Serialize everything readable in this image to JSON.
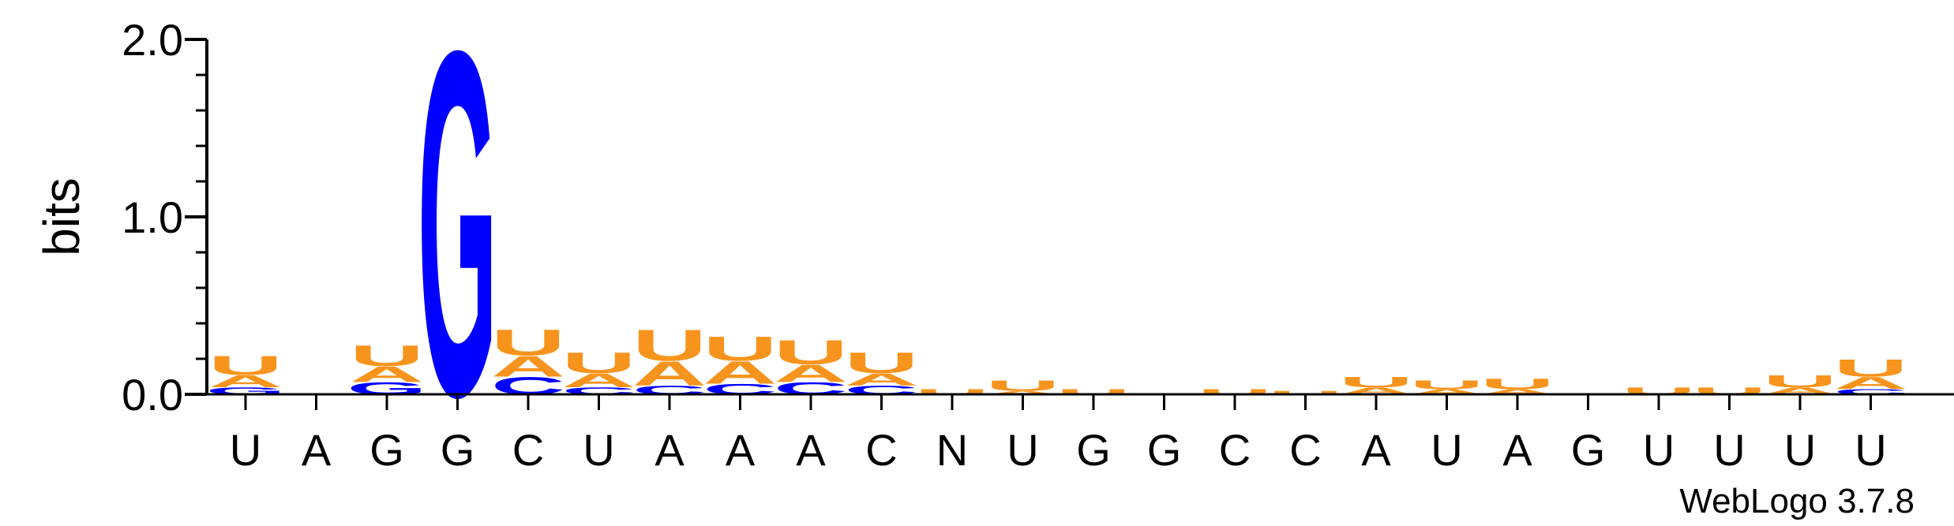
{
  "chart_data": {
    "type": "sequence-logo",
    "ylabel": "bits",
    "ylim": [
      0,
      2.0
    ],
    "yticks": [
      "0.0",
      "1.0",
      "2.0"
    ],
    "credit": "WebLogo 3.7.8",
    "colors": {
      "U": "#f7941d",
      "A": "#f7941d",
      "G": "#0000ff",
      "C": "#0000ff"
    },
    "positions": [
      {
        "label": "U",
        "stack": [
          [
            "G",
            0.04
          ],
          [
            "A",
            0.07
          ],
          [
            "U",
            0.11
          ]
        ]
      },
      {
        "label": "A",
        "stack": []
      },
      {
        "label": "G",
        "stack": [
          [
            "G",
            0.07
          ],
          [
            "A",
            0.09
          ],
          [
            "U",
            0.12
          ]
        ]
      },
      {
        "label": "G",
        "stack": [
          [
            "G",
            2.0
          ]
        ]
      },
      {
        "label": "C",
        "stack": [
          [
            "C",
            0.1
          ],
          [
            "A",
            0.12
          ],
          [
            "U",
            0.15
          ]
        ]
      },
      {
        "label": "U",
        "stack": [
          [
            "C",
            0.04
          ],
          [
            "A",
            0.08
          ],
          [
            "U",
            0.12
          ]
        ]
      },
      {
        "label": "A",
        "stack": [
          [
            "C",
            0.05
          ],
          [
            "A",
            0.14
          ],
          [
            "U",
            0.18
          ]
        ]
      },
      {
        "label": "A",
        "stack": [
          [
            "C",
            0.06
          ],
          [
            "A",
            0.13
          ],
          [
            "U",
            0.14
          ]
        ]
      },
      {
        "label": "A",
        "stack": [
          [
            "C",
            0.07
          ],
          [
            "A",
            0.1
          ],
          [
            "U",
            0.14
          ]
        ]
      },
      {
        "label": "C",
        "stack": [
          [
            "C",
            0.05
          ],
          [
            "A",
            0.07
          ],
          [
            "U",
            0.12
          ]
        ]
      },
      {
        "label": "N",
        "stack": [
          [
            "U",
            0.03
          ]
        ]
      },
      {
        "label": "U",
        "stack": [
          [
            "A",
            0.02
          ],
          [
            "U",
            0.06
          ]
        ]
      },
      {
        "label": "G",
        "stack": [
          [
            "U",
            0.03
          ]
        ]
      },
      {
        "label": "G",
        "stack": []
      },
      {
        "label": "C",
        "stack": [
          [
            "U",
            0.03
          ]
        ]
      },
      {
        "label": "C",
        "stack": [
          [
            "U",
            0.02
          ]
        ]
      },
      {
        "label": "A",
        "stack": [
          [
            "A",
            0.04
          ],
          [
            "U",
            0.06
          ]
        ]
      },
      {
        "label": "U",
        "stack": [
          [
            "A",
            0.03
          ],
          [
            "U",
            0.05
          ]
        ]
      },
      {
        "label": "A",
        "stack": [
          [
            "A",
            0.03
          ],
          [
            "U",
            0.06
          ]
        ]
      },
      {
        "label": "G",
        "stack": []
      },
      {
        "label": "U",
        "stack": [
          [
            "U",
            0.04
          ]
        ]
      },
      {
        "label": "U",
        "stack": [
          [
            "U",
            0.04
          ]
        ]
      },
      {
        "label": "U",
        "stack": [
          [
            "A",
            0.04
          ],
          [
            "U",
            0.07
          ]
        ]
      },
      {
        "label": "U",
        "stack": [
          [
            "C",
            0.03
          ],
          [
            "A",
            0.07
          ],
          [
            "U",
            0.1
          ]
        ]
      }
    ]
  }
}
